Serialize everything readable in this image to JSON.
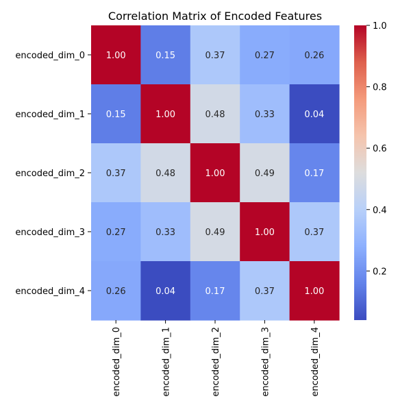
{
  "chart_data": {
    "type": "heatmap",
    "title": "Correlation Matrix of Encoded Features",
    "xlabel": "",
    "ylabel": "",
    "rows": [
      "encoded_dim_0",
      "encoded_dim_1",
      "encoded_dim_2",
      "encoded_dim_3",
      "encoded_dim_4"
    ],
    "columns": [
      "encoded_dim_0",
      "encoded_dim_1",
      "encoded_dim_2",
      "encoded_dim_3",
      "encoded_dim_4"
    ],
    "values": [
      [
        1.0,
        0.15,
        0.37,
        0.27,
        0.26
      ],
      [
        0.15,
        1.0,
        0.48,
        0.33,
        0.04
      ],
      [
        0.37,
        0.48,
        1.0,
        0.49,
        0.17
      ],
      [
        0.27,
        0.33,
        0.49,
        1.0,
        0.37
      ],
      [
        0.26,
        0.04,
        0.17,
        0.37,
        1.0
      ]
    ],
    "annotations_format": "0.00",
    "colorscale": "coolwarm",
    "colorbar": {
      "min": 0.04,
      "max": 1.0,
      "ticks": [
        0.2,
        0.4,
        0.6,
        0.8,
        1.0
      ],
      "tick_labels": [
        "0.2",
        "0.4",
        "0.6",
        "0.8",
        "1.0"
      ]
    },
    "grid": false,
    "legend": "colorbar-right"
  }
}
